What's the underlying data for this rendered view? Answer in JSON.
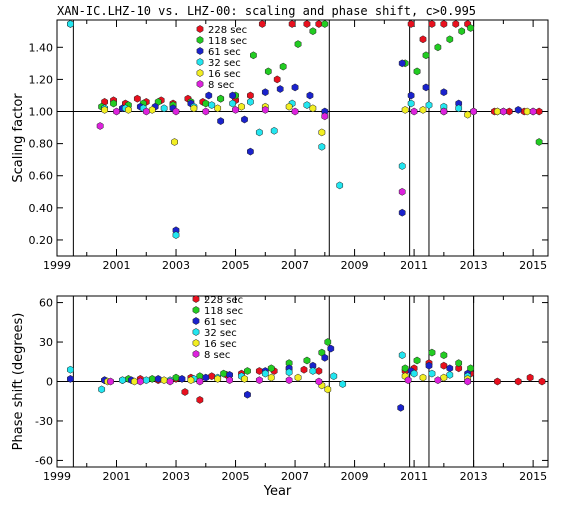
{
  "title": "XAN-IC.LHZ-10 vs. LHZ-00: scaling and phase shift, c>0.995",
  "colors": {
    "228 sec": "#e8101e",
    "118 sec": "#22cc22",
    "61 sec": "#1a22cc",
    "32 sec": "#22e6f0",
    "16 sec": "#f2ee22",
    "8 sec": "#dd22dd"
  },
  "chart_data": [
    {
      "type": "scatter",
      "ylabel": "Scaling factor",
      "xlim": [
        1999,
        2015.5
      ],
      "ylim": [
        0.1,
        1.57
      ],
      "yticks": [
        "0.20",
        "0.40",
        "0.60",
        "0.80",
        "1.00",
        "1.20",
        "1.40"
      ],
      "xticks": [
        "1999",
        "2001",
        "2003",
        "2005",
        "2007",
        "2009",
        "2011",
        "2013",
        "2015"
      ],
      "hline": 1.0,
      "vlines": [
        1999.55,
        2008.15,
        2010.85,
        2011.5,
        2013.0
      ],
      "legend_labels": [
        "228 sec",
        "118 sec",
        "61 sec",
        "32 sec",
        "16 sec",
        "8 sec"
      ],
      "series": [
        {
          "name": "228 sec",
          "points": [
            [
              2000.6,
              1.06
            ],
            [
              2000.9,
              1.07
            ],
            [
              2001.3,
              1.05
            ],
            [
              2001.7,
              1.08
            ],
            [
              2002.0,
              1.06
            ],
            [
              2002.5,
              1.07
            ],
            [
              2002.9,
              1.05
            ],
            [
              2003.4,
              1.08
            ],
            [
              2003.9,
              1.06
            ],
            [
              2004.5,
              1.08
            ],
            [
              2005.0,
              1.07
            ],
            [
              2005.5,
              1.1
            ],
            [
              2005.9,
              1.55
            ],
            [
              2006.4,
              1.2
            ],
            [
              2006.9,
              1.55
            ],
            [
              2007.4,
              1.55
            ],
            [
              2007.8,
              1.55
            ],
            [
              2010.9,
              1.55
            ],
            [
              2011.3,
              1.45
            ],
            [
              2011.6,
              1.55
            ],
            [
              2012.0,
              1.55
            ],
            [
              2012.4,
              1.55
            ],
            [
              2012.8,
              1.55
            ],
            [
              2013.7,
              1.0
            ],
            [
              2014.2,
              1.0
            ],
            [
              2014.7,
              1.0
            ],
            [
              2015.2,
              1.0
            ]
          ]
        },
        {
          "name": "118 sec",
          "points": [
            [
              2000.5,
              1.03
            ],
            [
              2000.9,
              1.05
            ],
            [
              2001.4,
              1.04
            ],
            [
              2001.9,
              1.05
            ],
            [
              2002.4,
              1.06
            ],
            [
              2002.9,
              1.04
            ],
            [
              2003.5,
              1.06
            ],
            [
              2004.0,
              1.05
            ],
            [
              2004.5,
              1.08
            ],
            [
              2005.0,
              1.1
            ],
            [
              2005.6,
              1.35
            ],
            [
              2006.1,
              1.25
            ],
            [
              2006.6,
              1.28
            ],
            [
              2007.1,
              1.42
            ],
            [
              2007.6,
              1.5
            ],
            [
              2008.0,
              1.55
            ],
            [
              2010.7,
              1.3
            ],
            [
              2011.1,
              1.25
            ],
            [
              2011.4,
              1.35
            ],
            [
              2011.8,
              1.4
            ],
            [
              2012.2,
              1.45
            ],
            [
              2012.6,
              1.5
            ],
            [
              2012.9,
              1.52
            ],
            [
              2015.2,
              0.81
            ]
          ]
        },
        {
          "name": "61 sec",
          "points": [
            [
              1999.45,
              1.55
            ],
            [
              2000.6,
              1.02
            ],
            [
              2001.2,
              1.02
            ],
            [
              2001.8,
              1.03
            ],
            [
              2002.3,
              1.03
            ],
            [
              2002.9,
              1.02
            ],
            [
              2003.0,
              0.26
            ],
            [
              2003.5,
              1.05
            ],
            [
              2004.1,
              1.1
            ],
            [
              2004.5,
              0.94
            ],
            [
              2004.9,
              1.1
            ],
            [
              2005.3,
              0.95
            ],
            [
              2005.5,
              0.75
            ],
            [
              2006.0,
              1.12
            ],
            [
              2006.5,
              1.14
            ],
            [
              2007.0,
              1.15
            ],
            [
              2007.5,
              1.1
            ],
            [
              2008.0,
              1.0
            ],
            [
              2010.6,
              1.3
            ],
            [
              2010.6,
              0.37
            ],
            [
              2010.9,
              1.1
            ],
            [
              2011.4,
              1.15
            ],
            [
              2012.0,
              1.12
            ],
            [
              2012.5,
              1.05
            ],
            [
              2013.8,
              1.0
            ],
            [
              2014.5,
              1.01
            ]
          ]
        },
        {
          "name": "32 sec",
          "points": [
            [
              1999.45,
              1.55
            ],
            [
              2000.6,
              1.02
            ],
            [
              2001.3,
              1.02
            ],
            [
              2001.9,
              1.02
            ],
            [
              2002.6,
              1.02
            ],
            [
              2003.0,
              0.23
            ],
            [
              2003.6,
              1.03
            ],
            [
              2004.2,
              1.04
            ],
            [
              2004.9,
              1.05
            ],
            [
              2005.5,
              1.06
            ],
            [
              2005.8,
              0.87
            ],
            [
              2006.3,
              0.88
            ],
            [
              2006.9,
              1.05
            ],
            [
              2007.4,
              1.04
            ],
            [
              2007.9,
              0.78
            ],
            [
              2008.5,
              0.54
            ],
            [
              2010.6,
              0.66
            ],
            [
              2010.9,
              1.05
            ],
            [
              2011.5,
              1.04
            ],
            [
              2012.0,
              1.03
            ],
            [
              2012.5,
              1.02
            ],
            [
              2013.0,
              1.0
            ],
            [
              2014.0,
              1.0
            ],
            [
              2015.0,
              1.0
            ]
          ]
        },
        {
          "name": "16 sec",
          "points": [
            [
              2000.6,
              1.01
            ],
            [
              2001.4,
              1.01
            ],
            [
              2002.2,
              1.01
            ],
            [
              2002.95,
              0.81
            ],
            [
              2003.6,
              1.02
            ],
            [
              2004.4,
              1.02
            ],
            [
              2005.2,
              1.03
            ],
            [
              2006.0,
              1.03
            ],
            [
              2006.8,
              1.03
            ],
            [
              2007.6,
              1.02
            ],
            [
              2007.9,
              0.87
            ],
            [
              2010.7,
              1.01
            ],
            [
              2011.3,
              1.01
            ],
            [
              2012.0,
              1.0
            ],
            [
              2012.8,
              0.98
            ],
            [
              2013.8,
              1.0
            ],
            [
              2014.8,
              1.0
            ]
          ]
        },
        {
          "name": "8 sec",
          "points": [
            [
              2000.45,
              0.91
            ],
            [
              2001.0,
              1.0
            ],
            [
              2002.0,
              1.0
            ],
            [
              2003.0,
              1.0
            ],
            [
              2004.0,
              1.0
            ],
            [
              2005.0,
              1.01
            ],
            [
              2006.0,
              1.01
            ],
            [
              2007.0,
              1.0
            ],
            [
              2008.0,
              0.97
            ],
            [
              2010.6,
              0.5
            ],
            [
              2011.0,
              1.0
            ],
            [
              2012.0,
              1.0
            ],
            [
              2013.0,
              1.0
            ],
            [
              2014.0,
              1.0
            ],
            [
              2015.0,
              1.0
            ]
          ]
        }
      ]
    },
    {
      "type": "scatter",
      "ylabel": "Phase shift (degrees)",
      "xlabel": "Year",
      "xlim": [
        1999,
        2015.5
      ],
      "ylim": [
        -65,
        65
      ],
      "yticks": [
        "60",
        "30",
        "0",
        "-30",
        "-60"
      ],
      "xticks": [
        "1999",
        "2001",
        "2003",
        "2005",
        "2007",
        "2009",
        "2011",
        "2013",
        "2015"
      ],
      "hline": 0,
      "vlines": [
        1999.55,
        2008.15,
        2010.85,
        2011.5,
        2013.0
      ],
      "legend_labels": [
        "228 sec",
        "118 sec",
        "61 sec",
        "32 sec",
        "16 sec",
        "8 sec"
      ],
      "series": [
        {
          "name": "228 sec",
          "points": [
            [
              2000.6,
              1
            ],
            [
              2001.2,
              1
            ],
            [
              2001.8,
              2
            ],
            [
              2002.4,
              1
            ],
            [
              2003.0,
              2
            ],
            [
              2003.3,
              -8
            ],
            [
              2003.5,
              3
            ],
            [
              2003.8,
              -14
            ],
            [
              2004.2,
              4
            ],
            [
              2004.7,
              5
            ],
            [
              2005.2,
              6
            ],
            [
              2005.8,
              8
            ],
            [
              2006.3,
              8
            ],
            [
              2006.8,
              10
            ],
            [
              2007.3,
              9
            ],
            [
              2007.8,
              8
            ],
            [
              2010.7,
              8
            ],
            [
              2011.0,
              10
            ],
            [
              2011.5,
              14
            ],
            [
              2012.0,
              12
            ],
            [
              2012.5,
              10
            ],
            [
              2012.9,
              6
            ],
            [
              2013.8,
              0
            ],
            [
              2014.5,
              0
            ],
            [
              2014.9,
              3
            ],
            [
              2015.3,
              0
            ]
          ]
        },
        {
          "name": "118 sec",
          "points": [
            [
              2000.6,
              1
            ],
            [
              2001.4,
              2
            ],
            [
              2002.2,
              2
            ],
            [
              2003.0,
              3
            ],
            [
              2003.8,
              4
            ],
            [
              2004.6,
              6
            ],
            [
              2005.4,
              8
            ],
            [
              2006.2,
              10
            ],
            [
              2006.8,
              14
            ],
            [
              2007.4,
              16
            ],
            [
              2007.9,
              22
            ],
            [
              2008.1,
              30
            ],
            [
              2010.7,
              10
            ],
            [
              2011.1,
              16
            ],
            [
              2011.6,
              22
            ],
            [
              2012.0,
              20
            ],
            [
              2012.5,
              14
            ],
            [
              2012.9,
              10
            ]
          ]
        },
        {
          "name": "61 sec",
          "points": [
            [
              1999.45,
              2
            ],
            [
              2000.6,
              1
            ],
            [
              2001.5,
              1
            ],
            [
              2002.4,
              2
            ],
            [
              2003.2,
              2
            ],
            [
              2004.0,
              3
            ],
            [
              2004.8,
              5
            ],
            [
              2005.4,
              -10
            ],
            [
              2006.0,
              8
            ],
            [
              2006.8,
              10
            ],
            [
              2007.6,
              12
            ],
            [
              2008.0,
              18
            ],
            [
              2008.2,
              25
            ],
            [
              2010.55,
              -20
            ],
            [
              2010.9,
              8
            ],
            [
              2011.5,
              12
            ],
            [
              2012.2,
              10
            ],
            [
              2012.8,
              6
            ]
          ]
        },
        {
          "name": "32 sec",
          "points": [
            [
              1999.45,
              9
            ],
            [
              2000.5,
              -6
            ],
            [
              2001.2,
              1
            ],
            [
              2002.0,
              1
            ],
            [
              2002.8,
              1
            ],
            [
              2003.6,
              2
            ],
            [
              2004.4,
              3
            ],
            [
              2005.2,
              4
            ],
            [
              2006.0,
              6
            ],
            [
              2006.8,
              7
            ],
            [
              2007.6,
              8
            ],
            [
              2008.3,
              4
            ],
            [
              2008.6,
              -2
            ],
            [
              2010.6,
              20
            ],
            [
              2011.0,
              6
            ],
            [
              2011.6,
              6
            ],
            [
              2012.2,
              5
            ],
            [
              2012.8,
              4
            ]
          ]
        },
        {
          "name": "16 sec",
          "points": [
            [
              2000.7,
              0
            ],
            [
              2001.6,
              0
            ],
            [
              2002.6,
              1
            ],
            [
              2003.5,
              1
            ],
            [
              2004.4,
              2
            ],
            [
              2005.3,
              2
            ],
            [
              2006.2,
              3
            ],
            [
              2007.1,
              3
            ],
            [
              2007.9,
              -3
            ],
            [
              2008.1,
              -6
            ],
            [
              2010.7,
              4
            ],
            [
              2011.3,
              3
            ],
            [
              2012.0,
              3
            ],
            [
              2012.8,
              2
            ]
          ]
        },
        {
          "name": "8 sec",
          "points": [
            [
              2000.8,
              0
            ],
            [
              2001.8,
              0
            ],
            [
              2002.8,
              0
            ],
            [
              2003.8,
              0
            ],
            [
              2004.8,
              1
            ],
            [
              2005.8,
              1
            ],
            [
              2006.8,
              1
            ],
            [
              2007.8,
              0
            ],
            [
              2010.8,
              1
            ],
            [
              2011.8,
              1
            ],
            [
              2012.8,
              0
            ]
          ]
        }
      ]
    }
  ]
}
